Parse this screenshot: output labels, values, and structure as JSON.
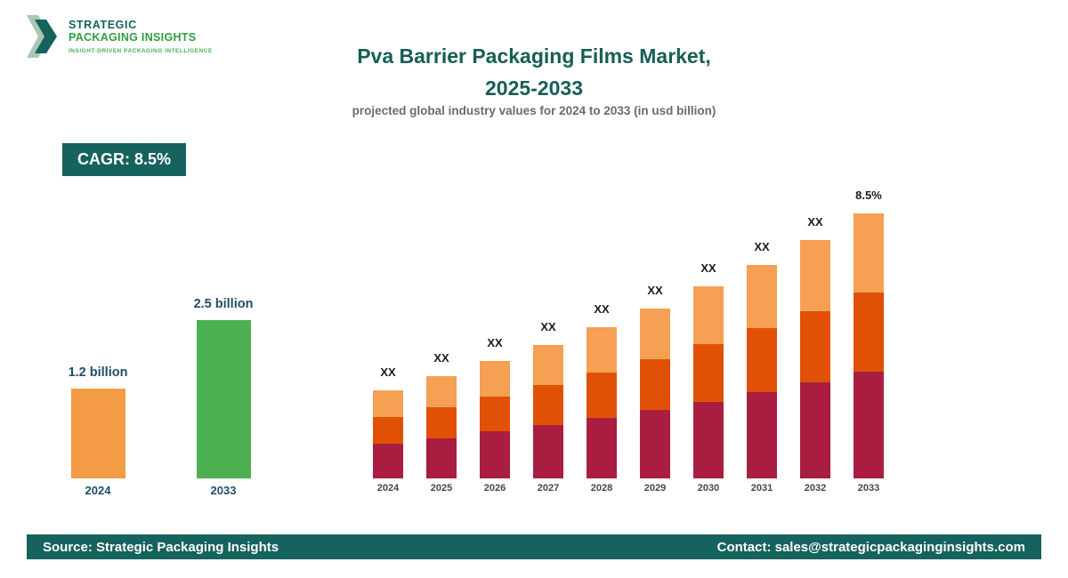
{
  "logo": {
    "line1": "STRATEGIC",
    "line2": "PACKAGING INSIGHTS",
    "tagline": "INSIGHT-DRIVEN PACKAGING INTELLIGENCE"
  },
  "header": {
    "title_line1": "Pva Barrier Packaging Films Market,",
    "title_line2": "2025-2033",
    "subtitle": "projected global industry values for 2024 to 2033 (in usd billion)"
  },
  "cagr_badge": "CAGR: 8.5%",
  "summary_chart": {
    "bars": [
      {
        "year": "2024",
        "label": "1.2 billion",
        "value": 1.2,
        "color": "#f49b45"
      },
      {
        "year": "2033",
        "label": "2.5 billion",
        "value": 2.5,
        "color": "#4caf50"
      }
    ]
  },
  "chart_data": {
    "type": "bar",
    "stacked": true,
    "title": "Pva Barrier Packaging Films Market, 2025-2033",
    "xlabel": "",
    "ylabel": "usd billion",
    "ylim": [
      0,
      2.6
    ],
    "grid": false,
    "legend": false,
    "categories": [
      "2024",
      "2025",
      "2026",
      "2027",
      "2028",
      "2029",
      "2030",
      "2031",
      "2032",
      "2033"
    ],
    "totals_estimated": [
      1.2,
      1.3,
      1.41,
      1.53,
      1.66,
      1.8,
      1.96,
      2.12,
      2.3,
      2.5
    ],
    "bar_labels": [
      "XX",
      "XX",
      "XX",
      "XX",
      "XX",
      "XX",
      "XX",
      "XX",
      "XX",
      "8.5%"
    ],
    "series": [
      {
        "name": "segment-bottom",
        "color": "#a81d40",
        "values": [
          0.48,
          0.52,
          0.56,
          0.61,
          0.66,
          0.72,
          0.78,
          0.85,
          0.92,
          1.0
        ]
      },
      {
        "name": "segment-middle",
        "color": "#e05106",
        "values": [
          0.36,
          0.39,
          0.42,
          0.46,
          0.5,
          0.54,
          0.59,
          0.64,
          0.69,
          0.75
        ]
      },
      {
        "name": "segment-top",
        "color": "#f5a052",
        "values": [
          0.36,
          0.39,
          0.43,
          0.46,
          0.5,
          0.54,
          0.59,
          0.63,
          0.69,
          0.75
        ]
      }
    ]
  },
  "footer": {
    "source": "Source: Strategic Packaging Insights",
    "contact": "Contact: sales@strategicpackaginginsights.com"
  },
  "colors": {
    "accent_teal": "#16625c",
    "logo_green": "#2f9e41",
    "label_navy": "#1d4e66",
    "bar_maroon": "#a81d40",
    "bar_dark_orange": "#e05106",
    "bar_light_orange": "#f5a052",
    "summary_orange": "#f49b45",
    "summary_green": "#4caf50"
  }
}
